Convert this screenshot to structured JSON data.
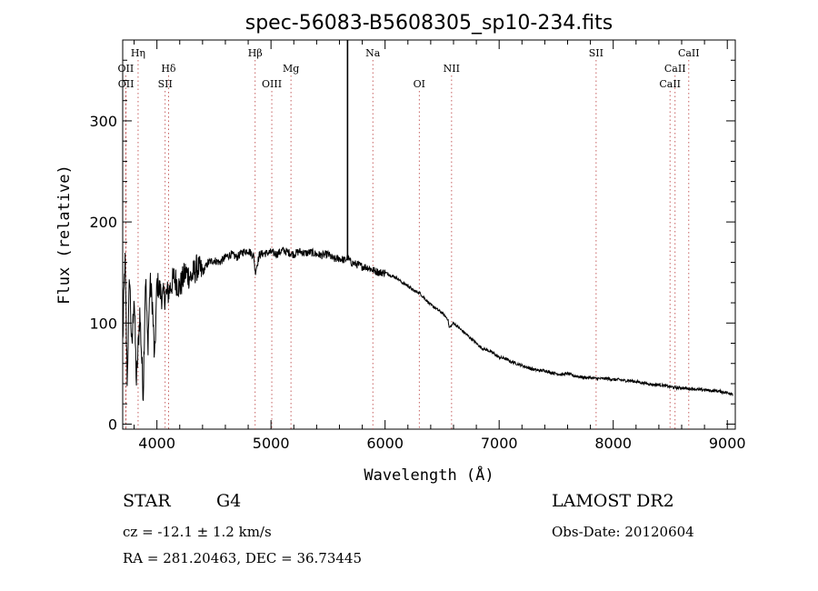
{
  "chart_data": {
    "type": "line",
    "title": "spec-56083-B5608305_sp10-234.fits",
    "xlabel": "Wavelength (Å)",
    "ylabel": "Flux (relative)",
    "xlim": [
      3700,
      9070
    ],
    "ylim": [
      -5,
      380
    ],
    "xticks": [
      4000,
      5000,
      6000,
      7000,
      8000,
      9000
    ],
    "yticks": [
      0,
      100,
      200,
      300
    ],
    "grid": false,
    "series": [
      {
        "x": [
          3700,
          3720,
          3740,
          3760,
          3780,
          3800,
          3820,
          3850,
          3880,
          3900,
          3920,
          3940,
          3960,
          3980,
          4000,
          4050,
          4100,
          4150,
          4200,
          4250,
          4300,
          4350,
          4400,
          4450,
          4500,
          4550,
          4600,
          4650,
          4700,
          4750,
          4800,
          4850,
          4861,
          4900,
          4950,
          5000,
          5050,
          5100,
          5150,
          5200,
          5250,
          5300,
          5350,
          5400,
          5450,
          5500,
          5550,
          5600,
          5650,
          5671,
          5700,
          5750,
          5800,
          5850,
          5900,
          5950,
          6000,
          6050,
          6100,
          6150,
          6200,
          6250,
          6300,
          6350,
          6400,
          6450,
          6500,
          6550,
          6563,
          6600,
          6650,
          6700,
          6750,
          6800,
          6850,
          6900,
          6950,
          7000,
          7050,
          7100,
          7150,
          7200,
          7250,
          7300,
          7350,
          7400,
          7450,
          7500,
          7550,
          7600,
          7650,
          7700,
          7750,
          7800,
          7850,
          7900,
          7950,
          8000,
          8050,
          8100,
          8150,
          8200,
          8250,
          8300,
          8350,
          8400,
          8450,
          8500,
          8550,
          8600,
          8650,
          8700,
          8750,
          8800,
          8850,
          8900,
          8950,
          9000,
          9050
        ],
        "y": [
          80,
          165,
          40,
          150,
          70,
          130,
          40,
          110,
          30,
          150,
          75,
          140,
          120,
          60,
          140,
          125,
          130,
          145,
          135,
          150,
          145,
          155,
          150,
          160,
          162,
          160,
          165,
          168,
          165,
          170,
          172,
          166,
          150,
          168,
          169,
          170,
          168,
          172,
          170,
          168,
          171,
          169,
          170,
          168,
          167,
          168,
          163,
          164,
          162,
          165,
          160,
          158,
          156,
          155,
          152,
          150,
          150,
          147,
          145,
          140,
          137,
          132,
          130,
          124,
          118,
          114,
          110,
          104,
          95,
          100,
          95,
          90,
          85,
          80,
          75,
          73,
          70,
          66,
          65,
          62,
          60,
          58,
          56,
          54,
          53,
          53,
          51,
          50,
          49,
          50,
          48,
          47,
          46,
          46,
          45,
          45,
          45,
          44,
          44,
          43,
          43,
          42,
          41,
          40,
          39,
          39,
          38,
          37,
          36,
          36,
          35,
          35,
          34,
          34,
          33,
          33,
          32,
          31,
          30
        ]
      }
    ],
    "line_annotations": [
      {
        "label": "Hη",
        "x": 3835,
        "row": 0
      },
      {
        "label": "OII",
        "x": 3727,
        "row": 1
      },
      {
        "label": "OII",
        "x": 3729,
        "row": 2
      },
      {
        "label": "Hδ",
        "x": 4102,
        "row": 1
      },
      {
        "label": "SII",
        "x": 4072,
        "row": 2
      },
      {
        "label": "Hβ",
        "x": 4861,
        "row": 0
      },
      {
        "label": "Mg",
        "x": 5175,
        "row": 1
      },
      {
        "label": "OIII",
        "x": 5007,
        "row": 2
      },
      {
        "label": "Na",
        "x": 5893,
        "row": 0
      },
      {
        "label": "NII",
        "x": 6583,
        "row": 1
      },
      {
        "label": "OI",
        "x": 6300,
        "row": 2
      },
      {
        "label": "SII",
        "x": 7850,
        "row": 0
      },
      {
        "label": "CaII",
        "x": 8662,
        "row": 0
      },
      {
        "label": "CaII",
        "x": 8542,
        "row": 1
      },
      {
        "label": "CaII",
        "x": 8498,
        "row": 2
      }
    ]
  },
  "info": {
    "object_class": "STAR",
    "subclass": "G4",
    "survey": "LAMOST DR2",
    "redshift": "cz = -12.1 ± 1.2 km/s",
    "obs_date": "Obs-Date: 20120604",
    "coords": "RA = 281.20463, DEC =  36.73445"
  }
}
